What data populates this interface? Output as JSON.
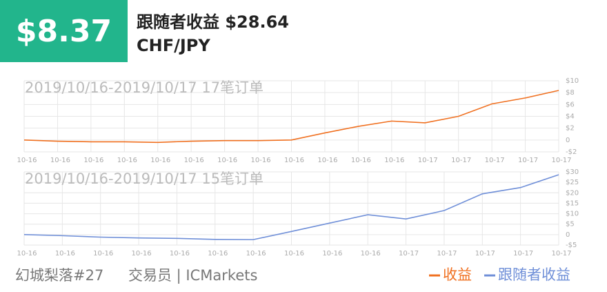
{
  "header": {
    "amount": "$8.37",
    "follower_profit": "跟随者收益 $28.64",
    "symbol": "CHF/JPY"
  },
  "footer": {
    "trader": "幻城梨落#27",
    "broker": "交易员 | ICMarkets"
  },
  "chart_data": [
    {
      "type": "line",
      "title": "2019/10/16-2019/10/17 17笔订单",
      "categories": [
        "10-16",
        "10-16",
        "10-16",
        "10-16",
        "10-16",
        "10-16",
        "10-16",
        "10-16",
        "10-16",
        "10-16",
        "10-16",
        "10-16",
        "10-17",
        "10-17",
        "10-17",
        "10-17",
        "10-17"
      ],
      "series": [
        {
          "name": "收益",
          "color": "#f07020",
          "values": [
            0,
            -0.2,
            -0.3,
            -0.3,
            -0.4,
            -0.2,
            -0.1,
            -0.1,
            0,
            1.2,
            2.3,
            3.2,
            2.9,
            4.0,
            6.1,
            7.1,
            8.37
          ]
        }
      ],
      "ylim": [
        -2,
        10
      ],
      "yticks": [
        {
          "value": -2,
          "label": "-$2"
        },
        0,
        {
          "value": 2,
          "label": "$2"
        },
        {
          "value": 4,
          "label": "$4"
        },
        {
          "value": 6,
          "label": "$6"
        },
        {
          "value": 8,
          "label": "$8"
        },
        {
          "value": 10,
          "label": "$10"
        }
      ],
      "grid": true
    },
    {
      "type": "line",
      "title": "2019/10/16-2019/10/17 15笔订单",
      "categories": [
        "10-16",
        "10-16",
        "10-16",
        "10-16",
        "10-16",
        "10-16",
        "10-16",
        "10-16",
        "10-16",
        "10-16",
        "10-17",
        "10-17",
        "10-17",
        "10-17",
        "10-17"
      ],
      "series": [
        {
          "name": "跟随者收益",
          "color": "#6f8fd8",
          "values": [
            0,
            -0.5,
            -1.2,
            -1.6,
            -1.8,
            -2.3,
            -2.4,
            1.5,
            5.5,
            9.5,
            7.5,
            11.5,
            19.5,
            22.5,
            28.64
          ]
        }
      ],
      "ylim": [
        -5,
        30
      ],
      "yticks": [
        {
          "value": -5,
          "label": "-$5"
        },
        0,
        {
          "value": 5,
          "label": "$5"
        },
        {
          "value": 10,
          "label": "$10"
        },
        {
          "value": 15,
          "label": "$15"
        },
        {
          "value": 20,
          "label": "$20"
        },
        {
          "value": 25,
          "label": "$25"
        },
        {
          "value": 30,
          "label": "$30"
        }
      ],
      "grid": true
    }
  ]
}
